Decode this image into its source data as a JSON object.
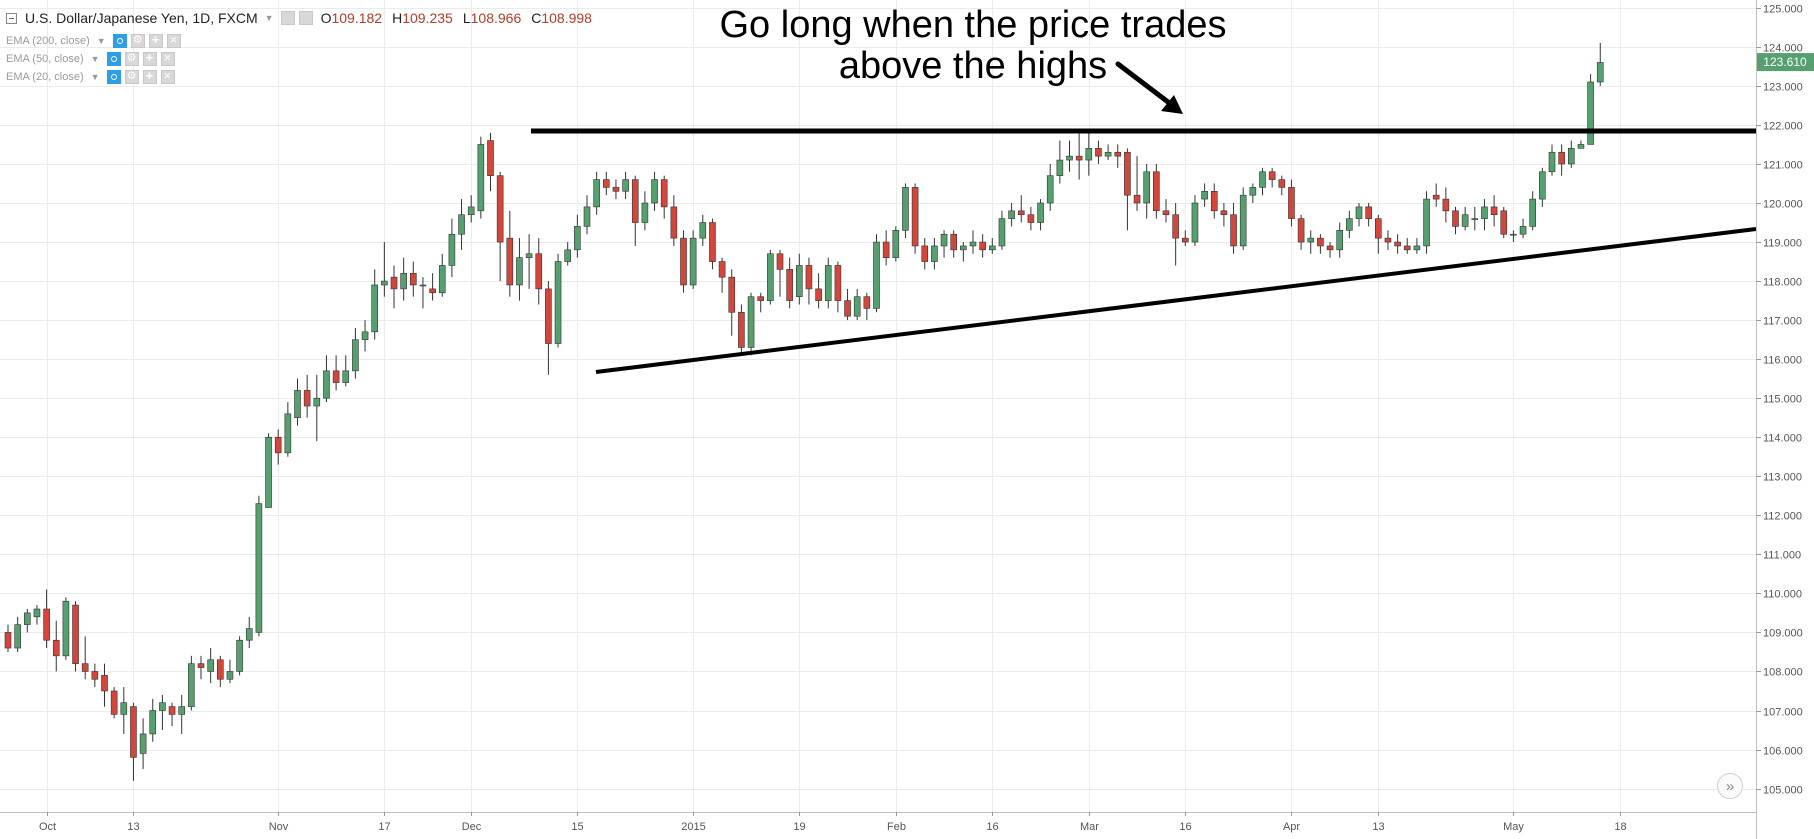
{
  "header": {
    "symbol_title": "U.S. Dollar/Japanese Yen, 1D, FXCM",
    "ohlc": [
      {
        "label": "O",
        "value": "109.182"
      },
      {
        "label": "H",
        "value": "109.235"
      },
      {
        "label": "L",
        "value": "108.966"
      },
      {
        "label": "C",
        "value": "108.998"
      }
    ],
    "indicators": [
      "EMA (200, close)",
      "EMA (50, close)",
      "EMA (20, close)"
    ]
  },
  "annotation": {
    "line1": "Go long when the price trades",
    "line2": "above the highs"
  },
  "colors": {
    "up": "#55a06e",
    "down": "#d2463c",
    "wick": "#333333",
    "grid": "#ebebeb",
    "last_price_bg": "#55a06e",
    "drawing": "#000000"
  },
  "chart_data": {
    "type": "candlestick",
    "ylim": [
      104.4,
      125.2
    ],
    "y_ticks": [
      "105.000",
      "106.000",
      "107.000",
      "108.000",
      "109.000",
      "110.000",
      "111.000",
      "112.000",
      "113.000",
      "114.000",
      "115.000",
      "116.000",
      "117.000",
      "118.000",
      "119.000",
      "120.000",
      "121.000",
      "122.000",
      "123.000",
      "124.000",
      "125.000"
    ],
    "last_price": "123.610",
    "x_ticks": [
      {
        "label": "Oct",
        "i": 4
      },
      {
        "label": "13",
        "i": 13
      },
      {
        "label": "Nov",
        "i": 28
      },
      {
        "label": "17",
        "i": 39
      },
      {
        "label": "Dec",
        "i": 48
      },
      {
        "label": "15",
        "i": 59
      },
      {
        "label": "2015",
        "i": 71
      },
      {
        "label": "19",
        "i": 82
      },
      {
        "label": "Feb",
        "i": 92
      },
      {
        "label": "16",
        "i": 102
      },
      {
        "label": "Mar",
        "i": 112
      },
      {
        "label": "16",
        "i": 122
      },
      {
        "label": "Apr",
        "i": 133
      },
      {
        "label": "13",
        "i": 142
      },
      {
        "label": "May",
        "i": 156
      },
      {
        "label": "18",
        "i": 167
      }
    ],
    "candles": [
      [
        109.0,
        108.6,
        109.2,
        108.5
      ],
      [
        108.6,
        109.2,
        109.4,
        108.5
      ],
      [
        109.2,
        109.5,
        109.6,
        109.0
      ],
      [
        109.4,
        109.6,
        109.7,
        109.2
      ],
      [
        109.6,
        108.8,
        110.1,
        108.6
      ],
      [
        108.8,
        108.4,
        109.3,
        108.0
      ],
      [
        108.4,
        109.8,
        109.9,
        108.3
      ],
      [
        109.7,
        108.2,
        109.8,
        108.0
      ],
      [
        108.2,
        108.0,
        108.9,
        107.8
      ],
      [
        108.0,
        107.8,
        108.2,
        107.6
      ],
      [
        107.9,
        107.5,
        108.2,
        107.1
      ],
      [
        107.5,
        106.9,
        107.6,
        106.8
      ],
      [
        106.9,
        107.2,
        107.6,
        106.4
      ],
      [
        107.1,
        105.8,
        107.2,
        105.2
      ],
      [
        105.9,
        106.4,
        106.8,
        105.5
      ],
      [
        106.4,
        107.0,
        107.3,
        106.2
      ],
      [
        107.0,
        107.2,
        107.4,
        106.5
      ],
      [
        107.1,
        106.9,
        107.2,
        106.6
      ],
      [
        106.9,
        107.1,
        107.4,
        106.4
      ],
      [
        107.1,
        108.2,
        108.4,
        107.0
      ],
      [
        108.2,
        108.1,
        108.4,
        107.8
      ],
      [
        108.0,
        108.3,
        108.6,
        107.7
      ],
      [
        108.3,
        107.8,
        108.4,
        107.6
      ],
      [
        107.8,
        108.0,
        108.3,
        107.7
      ],
      [
        108.0,
        108.8,
        108.9,
        107.9
      ],
      [
        108.8,
        109.1,
        109.4,
        108.6
      ],
      [
        109.0,
        112.3,
        112.5,
        108.9
      ],
      [
        112.2,
        114.0,
        114.1,
        112.5
      ],
      [
        114.0,
        113.6,
        114.2,
        113.3
      ],
      [
        113.6,
        114.6,
        114.9,
        113.5
      ],
      [
        114.5,
        115.2,
        115.5,
        114.3
      ],
      [
        115.2,
        114.8,
        115.6,
        114.5
      ],
      [
        114.8,
        115.0,
        115.6,
        113.9
      ],
      [
        115.0,
        115.7,
        116.1,
        114.9
      ],
      [
        115.7,
        115.4,
        116.1,
        115.2
      ],
      [
        115.4,
        115.7,
        116.1,
        115.3
      ],
      [
        115.7,
        116.5,
        116.8,
        115.5
      ],
      [
        116.5,
        116.7,
        117.0,
        116.2
      ],
      [
        116.7,
        117.9,
        118.3,
        116.5
      ],
      [
        117.9,
        118.0,
        119.0,
        117.6
      ],
      [
        118.1,
        117.8,
        118.4,
        117.3
      ],
      [
        117.8,
        118.2,
        118.6,
        117.5
      ],
      [
        118.2,
        117.9,
        118.5,
        117.6
      ],
      [
        117.9,
        117.9,
        118.1,
        117.3
      ],
      [
        117.8,
        117.7,
        118.2,
        117.5
      ],
      [
        117.7,
        118.4,
        118.7,
        117.6
      ],
      [
        118.4,
        119.2,
        119.6,
        118.1
      ],
      [
        119.2,
        119.7,
        120.1,
        118.8
      ],
      [
        119.7,
        119.9,
        120.2,
        119.5
      ],
      [
        119.8,
        121.5,
        121.7,
        119.6
      ],
      [
        121.6,
        120.7,
        121.8,
        120.3
      ],
      [
        120.7,
        119.0,
        120.8,
        118.0
      ],
      [
        119.1,
        117.9,
        119.8,
        117.6
      ],
      [
        117.9,
        118.6,
        119.1,
        117.5
      ],
      [
        118.6,
        118.7,
        119.2,
        117.8
      ],
      [
        118.7,
        117.8,
        119.1,
        117.4
      ],
      [
        117.8,
        116.4,
        118.0,
        115.6
      ],
      [
        116.4,
        118.5,
        118.7,
        116.3
      ],
      [
        118.5,
        118.8,
        119.0,
        118.4
      ],
      [
        118.8,
        119.4,
        119.7,
        118.6
      ],
      [
        119.4,
        119.9,
        120.2,
        119.2
      ],
      [
        119.9,
        120.6,
        120.8,
        119.7
      ],
      [
        120.6,
        120.4,
        120.8,
        120.2
      ],
      [
        120.4,
        120.3,
        120.6,
        120.1
      ],
      [
        120.3,
        120.6,
        120.8,
        120.1
      ],
      [
        120.6,
        119.5,
        120.7,
        118.9
      ],
      [
        119.5,
        120.0,
        120.3,
        119.3
      ],
      [
        120.0,
        120.6,
        120.8,
        119.8
      ],
      [
        120.6,
        119.9,
        120.7,
        119.6
      ],
      [
        119.9,
        119.1,
        120.2,
        118.9
      ],
      [
        119.1,
        117.9,
        119.3,
        117.7
      ],
      [
        117.9,
        119.1,
        119.3,
        117.8
      ],
      [
        119.1,
        119.5,
        119.7,
        118.9
      ],
      [
        119.5,
        118.5,
        119.6,
        118.3
      ],
      [
        118.5,
        118.1,
        118.6,
        117.7
      ],
      [
        118.1,
        117.2,
        118.3,
        116.6
      ],
      [
        117.2,
        116.3,
        117.4,
        116.1
      ],
      [
        116.3,
        117.6,
        117.7,
        116.1
      ],
      [
        117.6,
        117.5,
        117.7,
        117.2
      ],
      [
        117.5,
        118.7,
        118.8,
        117.4
      ],
      [
        118.7,
        118.3,
        118.8,
        117.6
      ],
      [
        118.3,
        117.5,
        118.6,
        117.3
      ],
      [
        117.6,
        118.4,
        118.7,
        117.4
      ],
      [
        118.4,
        117.8,
        118.6,
        117.4
      ],
      [
        117.8,
        117.5,
        118.2,
        117.3
      ],
      [
        117.5,
        118.4,
        118.6,
        117.3
      ],
      [
        118.4,
        117.5,
        118.5,
        117.2
      ],
      [
        117.5,
        117.1,
        117.8,
        117.0
      ],
      [
        117.1,
        117.6,
        117.8,
        117.0
      ],
      [
        117.6,
        117.3,
        117.7,
        117.0
      ],
      [
        117.3,
        119.0,
        119.2,
        117.2
      ],
      [
        119.0,
        118.6,
        119.3,
        118.4
      ],
      [
        118.6,
        119.3,
        119.4,
        118.5
      ],
      [
        119.3,
        120.4,
        120.5,
        119.1
      ],
      [
        120.4,
        118.9,
        120.5,
        118.7
      ],
      [
        118.9,
        118.5,
        119.1,
        118.3
      ],
      [
        118.5,
        118.9,
        119.1,
        118.3
      ],
      [
        118.9,
        119.2,
        119.3,
        118.6
      ],
      [
        119.2,
        118.8,
        119.3,
        118.6
      ],
      [
        118.8,
        118.9,
        119.0,
        118.5
      ],
      [
        118.9,
        119.0,
        119.3,
        118.7
      ],
      [
        119.0,
        118.8,
        119.2,
        118.6
      ],
      [
        118.8,
        118.9,
        119.1,
        118.7
      ],
      [
        118.9,
        119.6,
        119.8,
        118.8
      ],
      [
        119.6,
        119.8,
        120.0,
        119.4
      ],
      [
        119.8,
        119.7,
        120.2,
        119.5
      ],
      [
        119.7,
        119.5,
        119.9,
        119.3
      ],
      [
        119.5,
        120.0,
        120.1,
        119.3
      ],
      [
        120.0,
        120.7,
        121.0,
        119.8
      ],
      [
        120.7,
        121.1,
        121.6,
        120.5
      ],
      [
        121.1,
        121.2,
        121.6,
        120.8
      ],
      [
        121.2,
        121.1,
        121.9,
        120.6
      ],
      [
        121.1,
        121.4,
        121.8,
        120.7
      ],
      [
        121.4,
        121.2,
        121.6,
        121.0
      ],
      [
        121.2,
        121.3,
        121.5,
        121.1
      ],
      [
        121.3,
        121.2,
        121.5,
        120.9
      ],
      [
        121.3,
        120.2,
        121.4,
        119.3
      ],
      [
        120.2,
        120.0,
        121.2,
        119.8
      ],
      [
        120.0,
        120.8,
        121.0,
        119.6
      ],
      [
        120.8,
        119.8,
        121.0,
        119.6
      ],
      [
        119.8,
        119.7,
        120.1,
        119.5
      ],
      [
        119.7,
        119.1,
        120.0,
        118.4
      ],
      [
        119.1,
        119.0,
        119.3,
        118.9
      ],
      [
        119.0,
        120.0,
        120.2,
        118.9
      ],
      [
        120.1,
        120.3,
        120.5,
        119.9
      ],
      [
        120.3,
        119.8,
        120.5,
        119.6
      ],
      [
        119.8,
        119.7,
        120.0,
        119.4
      ],
      [
        119.7,
        118.9,
        120.0,
        118.7
      ],
      [
        118.9,
        120.2,
        120.4,
        118.8
      ],
      [
        120.2,
        120.4,
        120.5,
        120.0
      ],
      [
        120.4,
        120.8,
        120.9,
        120.2
      ],
      [
        120.8,
        120.6,
        120.9,
        120.4
      ],
      [
        120.6,
        120.4,
        120.7,
        120.2
      ],
      [
        120.4,
        119.6,
        120.6,
        119.4
      ],
      [
        119.6,
        119.0,
        119.7,
        118.8
      ],
      [
        119.0,
        119.1,
        119.3,
        118.7
      ],
      [
        119.1,
        118.9,
        119.2,
        118.7
      ],
      [
        118.9,
        118.8,
        119.0,
        118.6
      ],
      [
        118.8,
        119.3,
        119.5,
        118.6
      ],
      [
        119.3,
        119.6,
        119.8,
        119.1
      ],
      [
        119.6,
        119.9,
        120.0,
        119.4
      ],
      [
        119.9,
        119.6,
        120.0,
        119.4
      ],
      [
        119.6,
        119.1,
        119.7,
        118.7
      ],
      [
        119.1,
        119.0,
        119.3,
        118.8
      ],
      [
        119.0,
        118.9,
        119.2,
        118.7
      ],
      [
        118.9,
        118.8,
        119.1,
        118.7
      ],
      [
        118.8,
        118.9,
        119.1,
        118.7
      ],
      [
        118.9,
        120.1,
        120.3,
        118.7
      ],
      [
        120.2,
        120.1,
        120.5,
        119.9
      ],
      [
        120.1,
        119.8,
        120.4,
        119.5
      ],
      [
        119.8,
        119.4,
        119.9,
        119.2
      ],
      [
        119.4,
        119.7,
        119.9,
        119.3
      ],
      [
        119.6,
        119.6,
        119.9,
        119.3
      ],
      [
        119.6,
        119.9,
        120.1,
        119.3
      ],
      [
        119.9,
        119.7,
        120.2,
        119.4
      ],
      [
        119.8,
        119.2,
        119.9,
        119.1
      ],
      [
        119.2,
        119.2,
        119.3,
        119.0
      ],
      [
        119.2,
        119.4,
        119.6,
        119.1
      ],
      [
        119.4,
        120.1,
        120.3,
        119.3
      ],
      [
        120.1,
        120.8,
        120.9,
        119.9
      ],
      [
        120.8,
        121.3,
        121.5,
        120.7
      ],
      [
        121.3,
        121.0,
        121.5,
        120.7
      ],
      [
        121.0,
        121.4,
        121.6,
        120.9
      ],
      [
        121.4,
        121.5,
        121.6,
        121.4
      ],
      [
        121.5,
        123.1,
        123.3,
        121.5
      ],
      [
        123.1,
        123.6,
        124.1,
        123.0
      ]
    ]
  }
}
